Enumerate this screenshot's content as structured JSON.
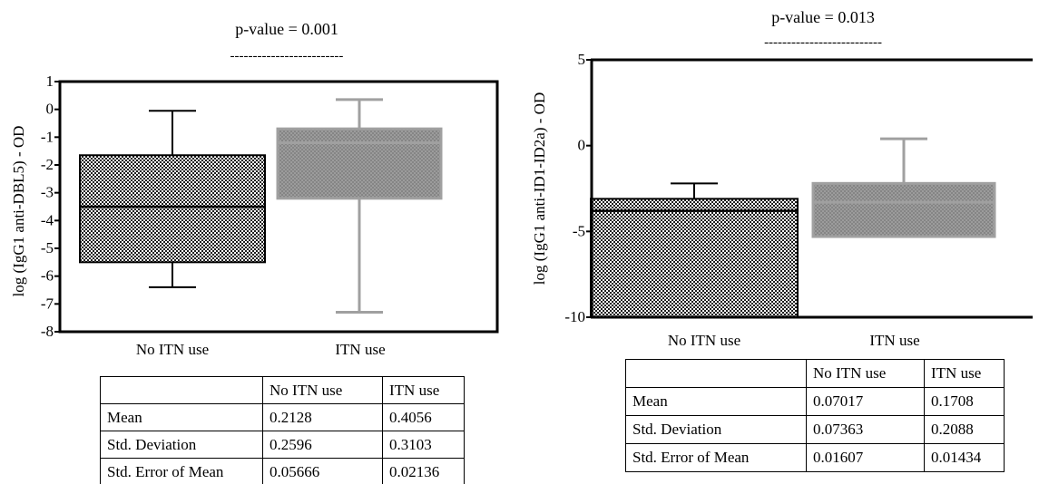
{
  "pattern_colors": {
    "dark": "#1c1c1c",
    "light": "#ffffff",
    "gray_fill": "#9c9c9c",
    "gray_dark": "#858585",
    "gray_line": "#a0a0a0",
    "black": "#000000"
  },
  "chart_data": [
    {
      "type": "box",
      "pvalue_label": "p-value = 0.001",
      "pvalue_dashes": "-------------------------",
      "ylabel": "log (IgG1 anti-DBL5) - OD",
      "ylim": [
        -8,
        1
      ],
      "yticks": [
        1,
        0,
        -1,
        -2,
        -3,
        -4,
        -5,
        -6,
        -7,
        -8
      ],
      "ytick_labels": [
        "1",
        "0",
        "-1",
        "-2",
        "-3",
        "-4",
        "-5",
        "-6",
        "-7",
        "-8"
      ],
      "categories": [
        "No ITN use",
        "ITN use"
      ],
      "boxes": [
        {
          "category": "No ITN use",
          "whisker_low": -6.4,
          "q1": -5.5,
          "median": -3.5,
          "q3": -1.65,
          "whisker_high": -0.05,
          "style": "dark"
        },
        {
          "category": "ITN use",
          "whisker_low": -7.3,
          "q1": -3.2,
          "median": -1.2,
          "q3": -0.7,
          "whisker_high": 0.35,
          "style": "gray"
        }
      ],
      "table": {
        "headers": [
          "",
          "No ITN use",
          "ITN use"
        ],
        "rows": [
          [
            "Mean",
            "0.2128",
            "0.4056"
          ],
          [
            "Std. Deviation",
            "0.2596",
            "0.3103"
          ],
          [
            "Std. Error of Mean",
            "0.05666",
            "0.02136"
          ]
        ]
      }
    },
    {
      "type": "box",
      "pvalue_label": "p-value = 0.013",
      "pvalue_dashes": "--------------------------",
      "ylabel": "log (IgG1 anti-ID1-ID2a) - OD",
      "ylim": [
        -10,
        5
      ],
      "yticks": [
        5,
        0,
        -5,
        -10
      ],
      "ytick_labels": [
        "5",
        "0",
        "-5",
        "-10"
      ],
      "categories": [
        "No ITN use",
        "ITN use"
      ],
      "boxes": [
        {
          "category": "No ITN use",
          "whisker_low": -10,
          "q1": -10,
          "median": -3.8,
          "q3": -3.1,
          "whisker_high": -2.2,
          "style": "dark"
        },
        {
          "category": "ITN use",
          "whisker_low": -5.3,
          "q1": -5.3,
          "median": -3.3,
          "q3": -2.2,
          "whisker_high": 0.4,
          "style": "gray"
        }
      ],
      "table": {
        "headers": [
          "",
          "No ITN use",
          "ITN use"
        ],
        "rows": [
          [
            "Mean",
            "0.07017",
            "0.1708"
          ],
          [
            "Std. Deviation",
            "0.07363",
            "0.2088"
          ],
          [
            "Std. Error of Mean",
            "0.01607",
            "0.01434"
          ]
        ]
      }
    }
  ]
}
